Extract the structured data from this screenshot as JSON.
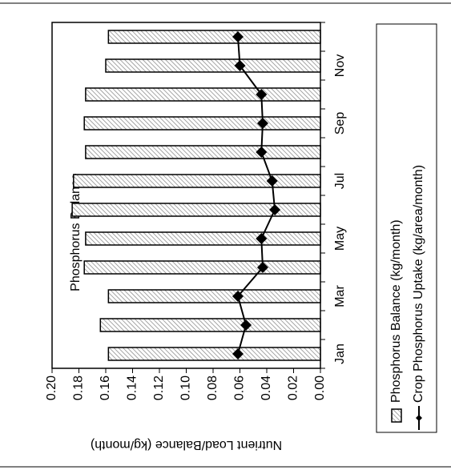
{
  "chart_data": {
    "type": "bar",
    "title": "Phosphorus Balance",
    "y_label": "Nutrient Load/Balance (kg/month)",
    "categories": [
      "Jan",
      null,
      "Mar",
      null,
      "May",
      null,
      "Jul",
      null,
      "Sep",
      null,
      "Nov",
      null
    ],
    "series": [
      {
        "name": "Phosphorus Balance (kg/month)",
        "type": "bar",
        "color": "#888888",
        "values": [
          0.158,
          0.164,
          0.158,
          0.176,
          0.175,
          0.185,
          0.184,
          0.175,
          0.176,
          0.175,
          0.16,
          0.158
        ]
      },
      {
        "name": "Crop Phosphorus Uptake (kg/area/month)",
        "type": "line",
        "color": "#000000",
        "values": [
          0.0615,
          0.0555,
          0.0615,
          0.043,
          0.044,
          0.034,
          0.036,
          0.044,
          0.043,
          0.044,
          0.06,
          0.0615
        ]
      }
    ],
    "ylim": [
      0,
      0.2
    ],
    "yticks": [
      {
        "value": 0,
        "label": "0.00"
      },
      {
        "value": 0.02,
        "label": "0.02"
      },
      {
        "value": 0.04,
        "label": "0.04"
      },
      {
        "value": 0.06,
        "label": "0.06"
      },
      {
        "value": 0.08,
        "label": "0.08"
      },
      {
        "value": 0.1,
        "label": "0.10"
      },
      {
        "value": 0.12,
        "label": "0.12"
      },
      {
        "value": 0.14,
        "label": "0.14"
      },
      {
        "value": 0.16,
        "label": "0.16"
      },
      {
        "value": 0.18,
        "label": "0.18"
      },
      {
        "value": 0.2,
        "label": "0.20"
      }
    ],
    "rotated": true
  }
}
